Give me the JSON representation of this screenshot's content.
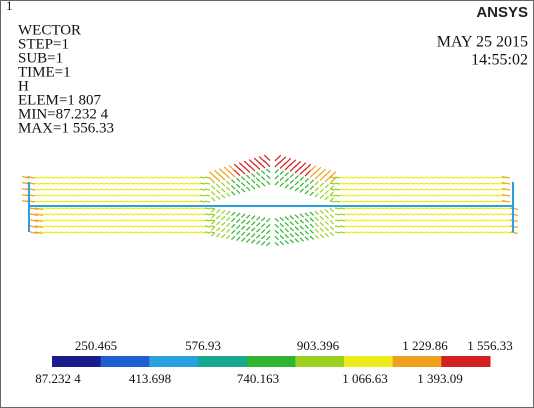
{
  "window": {
    "number": "1",
    "logo": "ANSYS",
    "date": "MAY 25 2015",
    "time": "14:55:02"
  },
  "info": [
    "WECTOR",
    "STEP=1",
    "SUB=1",
    "TIME=1",
    "H",
    "ELEM=1 807",
    "MIN=87.232 4",
    "MAX=1 556.33"
  ],
  "legend": {
    "top_labels": [
      "250.465",
      "576.93",
      "903.396",
      "1 229.86",
      "1 556.33"
    ],
    "bottom_labels": [
      "87.232 4",
      "413.698",
      "740.163",
      "1 066.63",
      "1 393.09"
    ]
  }
}
